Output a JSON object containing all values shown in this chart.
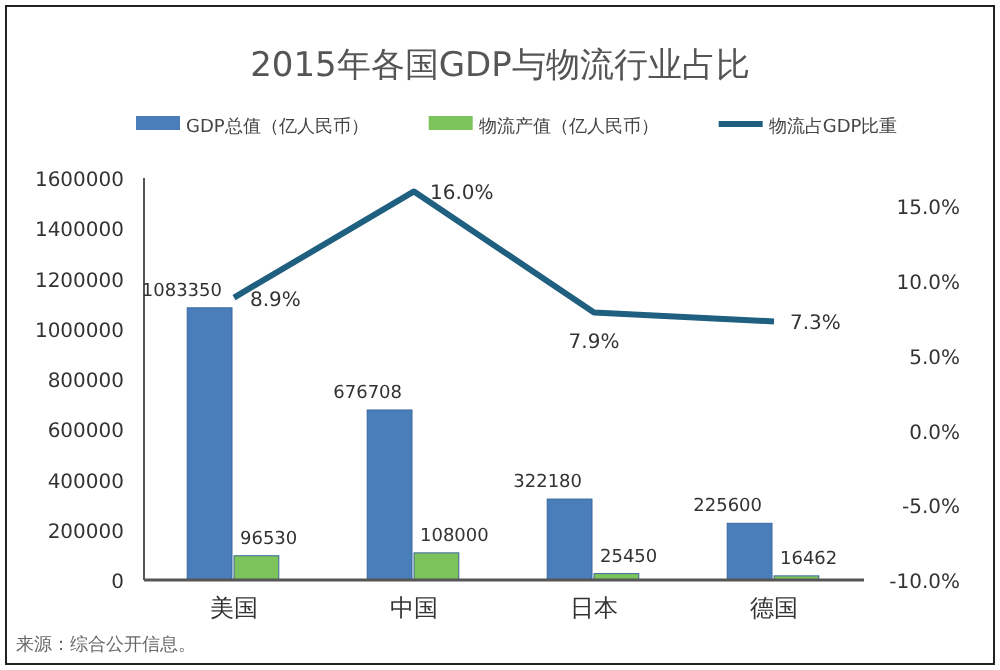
{
  "chart_data": {
    "type": "bar",
    "title": "2015年各国GDP与物流行业占比",
    "categories": [
      "美国",
      "中国",
      "日本",
      "德国"
    ],
    "series": [
      {
        "name": "GDP总值（亿人民币）",
        "color": "#4a7ebb",
        "values": [
          1083350,
          676708,
          322180,
          225600
        ]
      },
      {
        "name": "物流产值（亿人民币）",
        "color": "#7dc35b",
        "values": [
          96530,
          108000,
          25450,
          16462
        ]
      },
      {
        "name": "物流占GDP比重",
        "type": "line",
        "axis": "y2",
        "color": "#1f5f80",
        "values": [
          8.9,
          16.0,
          7.9,
          7.3
        ],
        "value_labels": [
          "8.9%",
          "16.0%",
          "7.9%",
          "7.3%"
        ]
      }
    ],
    "ylim": [
      0,
      1600000
    ],
    "yticks": [
      0,
      200000,
      400000,
      600000,
      800000,
      1000000,
      1200000,
      1400000,
      1600000
    ],
    "y2lim": [
      -10,
      16.9
    ],
    "y2ticks": [
      {
        "value": -10,
        "label": "-10.0%"
      },
      {
        "value": -5,
        "label": "-5.0%"
      },
      {
        "value": 0,
        "label": "0.0%"
      },
      {
        "value": 5,
        "label": "5.0%"
      },
      {
        "value": 10,
        "label": "10.0%"
      },
      {
        "value": 15,
        "label": "15.0%"
      }
    ],
    "data_labels": true,
    "legend": "top",
    "grid": false,
    "annotations": [
      "来源：综合公开信息。"
    ]
  }
}
